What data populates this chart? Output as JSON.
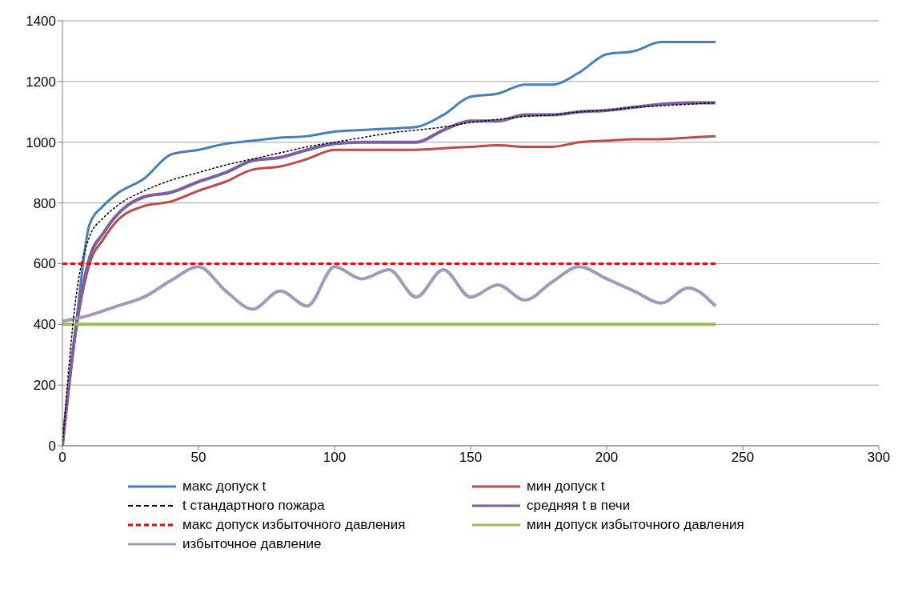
{
  "chart_data": {
    "type": "line",
    "x": [
      0,
      5,
      10,
      15,
      20,
      30,
      40,
      50,
      60,
      70,
      80,
      90,
      100,
      110,
      120,
      130,
      140,
      150,
      160,
      170,
      180,
      190,
      200,
      210,
      220,
      230,
      240
    ],
    "series": [
      {
        "name": "макс допуск t",
        "color": "#4a7ebb",
        "values": [
          0,
          400,
          730,
          790,
          830,
          880,
          960,
          975,
          995,
          1005,
          1015,
          1020,
          1035,
          1040,
          1045,
          1050,
          1090,
          1150,
          1160,
          1190,
          1190,
          1230,
          1290,
          1300,
          1330,
          1330,
          1330
        ]
      },
      {
        "name": "мин допуск t",
        "color": "#be4b48",
        "values": [
          0,
          380,
          600,
          680,
          740,
          790,
          805,
          840,
          870,
          910,
          920,
          945,
          975,
          975,
          975,
          975,
          980,
          985,
          990,
          985,
          985,
          1000,
          1005,
          1010,
          1010,
          1015,
          1020
        ]
      },
      {
        "name": "t стандартного пожара",
        "color": "#000000",
        "line_style": "dashed",
        "values": [
          0,
          490,
          690,
          750,
          790,
          840,
          875,
          900,
          925,
          945,
          965,
          985,
          1000,
          1015,
          1030,
          1040,
          1050,
          1065,
          1075,
          1085,
          1090,
          1100,
          1105,
          1115,
          1120,
          1125,
          1130
        ]
      },
      {
        "name": "средняя t в печи",
        "color": "#7d60a0",
        "values": [
          0,
          390,
          620,
          700,
          760,
          820,
          835,
          870,
          900,
          940,
          950,
          975,
          995,
          1000,
          1000,
          1000,
          1040,
          1070,
          1070,
          1090,
          1090,
          1100,
          1105,
          1115,
          1125,
          1130,
          1130
        ]
      },
      {
        "name": "макс допуск избыточного давления",
        "color": "#ff0000",
        "line_style": "dashed",
        "x": [
          0,
          240
        ],
        "values": [
          600,
          600
        ]
      },
      {
        "name": "мин допуск избыточного давления",
        "color": "#9bbb59",
        "x": [
          0,
          240
        ],
        "values": [
          400,
          400
        ]
      },
      {
        "name": "избыточное давление",
        "color": "#a598bd",
        "x": [
          0,
          10,
          20,
          30,
          40,
          50,
          60,
          70,
          80,
          90,
          100,
          110,
          120,
          130,
          140,
          150,
          160,
          170,
          180,
          190,
          200,
          210,
          220,
          230,
          240
        ],
        "values": [
          410,
          430,
          460,
          490,
          545,
          590,
          510,
          450,
          510,
          460,
          590,
          550,
          580,
          490,
          580,
          490,
          530,
          480,
          540,
          590,
          550,
          510,
          470,
          520,
          460
        ]
      }
    ],
    "xlim": [
      0,
      300
    ],
    "xticks": [
      0,
      50,
      100,
      150,
      200,
      250,
      300
    ],
    "ylim": [
      0,
      1400
    ],
    "yticks": [
      0,
      200,
      400,
      600,
      800,
      1000,
      1200,
      1400
    ],
    "grid": "y",
    "legend": "bottom",
    "marker": "none",
    "line_style": "solid"
  }
}
